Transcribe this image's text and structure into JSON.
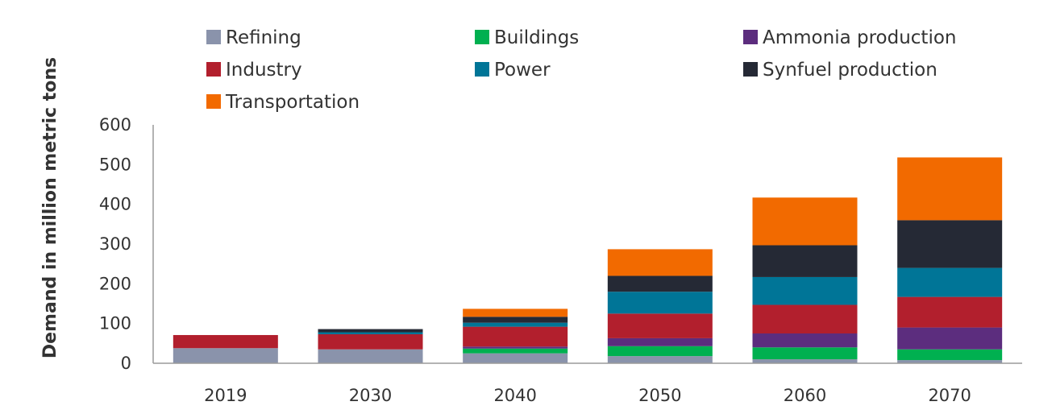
{
  "chart_data": {
    "type": "bar",
    "stacked": true,
    "categories": [
      "2019",
      "2030",
      "2040",
      "2050",
      "2060",
      "2070"
    ],
    "ylabel": "Demand in million metric tons",
    "xlabel": "",
    "ylim": [
      0,
      600
    ],
    "yticks": [
      "0",
      "100",
      "200",
      "300",
      "400",
      "500",
      "600"
    ],
    "grid": false,
    "legend_position": "top",
    "series": [
      {
        "name": "Refining",
        "color": "#8a93ab",
        "values": [
          38,
          35,
          25,
          18,
          10,
          8
        ]
      },
      {
        "name": "Buildings",
        "color": "#00b050",
        "values": [
          0,
          0,
          12,
          25,
          30,
          27
        ]
      },
      {
        "name": "Ammonia production",
        "color": "#5c2d7e",
        "values": [
          0,
          0,
          5,
          20,
          35,
          55
        ]
      },
      {
        "name": "Industry",
        "color": "#b21f2d",
        "values": [
          33,
          38,
          50,
          62,
          72,
          77
        ]
      },
      {
        "name": "Power",
        "color": "#007597",
        "values": [
          0,
          5,
          10,
          55,
          70,
          73
        ]
      },
      {
        "name": "Synfuel production",
        "color": "#252935",
        "values": [
          0,
          8,
          15,
          40,
          80,
          120
        ]
      },
      {
        "name": "Transportation",
        "color": "#f26a00",
        "values": [
          0,
          0,
          20,
          67,
          120,
          158
        ]
      }
    ],
    "legend_order": [
      "Refining",
      "Buildings",
      "Ammonia production",
      "Industry",
      "Power",
      "Synfuel production",
      "Transportation"
    ]
  }
}
